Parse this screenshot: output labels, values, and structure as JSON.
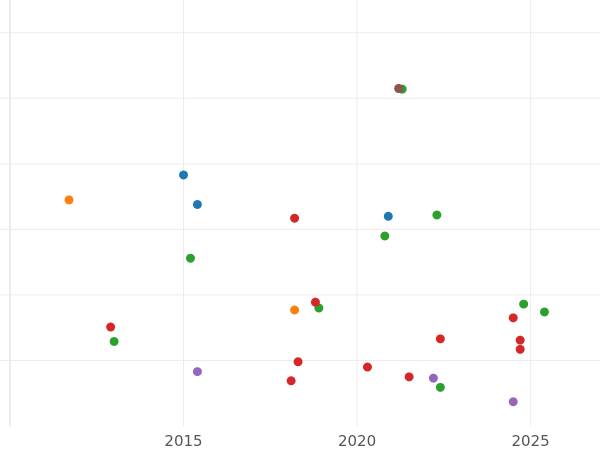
{
  "chart_data": {
    "type": "scatter",
    "title": "",
    "xlabel": "",
    "ylabel": "",
    "xlim": [
      2010,
      2027
    ],
    "ylim": [
      0,
      6.5
    ],
    "x_ticks": [
      2015,
      2020,
      2025
    ],
    "x_tick_labels": [
      "2015",
      "2020",
      "2025"
    ],
    "y_gridlines": [
      1,
      2,
      3,
      4,
      5,
      6
    ],
    "grid": true,
    "legend": "none",
    "series": [
      {
        "color": "#1f77b4",
        "points": [
          {
            "x": 2015.0,
            "y": 3.83
          },
          {
            "x": 2015.4,
            "y": 3.38
          },
          {
            "x": 2020.9,
            "y": 3.2
          }
        ]
      },
      {
        "color": "#ff7f0e",
        "points": [
          {
            "x": 2011.7,
            "y": 3.45
          },
          {
            "x": 2018.2,
            "y": 1.77
          }
        ]
      },
      {
        "color": "#2ca02c",
        "points": [
          {
            "x": 2021.3,
            "y": 5.14
          },
          {
            "x": 2022.3,
            "y": 3.22
          },
          {
            "x": 2020.8,
            "y": 2.9
          },
          {
            "x": 2015.2,
            "y": 2.56
          },
          {
            "x": 2018.9,
            "y": 1.8
          },
          {
            "x": 2024.8,
            "y": 1.86
          },
          {
            "x": 2025.4,
            "y": 1.74
          },
          {
            "x": 2013.0,
            "y": 1.29
          },
          {
            "x": 2022.4,
            "y": 0.59
          }
        ]
      },
      {
        "color": "#d62728",
        "points": [
          {
            "x": 2021.2,
            "y": 5.15
          },
          {
            "x": 2018.2,
            "y": 3.17
          },
          {
            "x": 2018.8,
            "y": 1.89
          },
          {
            "x": 2012.9,
            "y": 1.51
          },
          {
            "x": 2024.5,
            "y": 1.65
          },
          {
            "x": 2024.7,
            "y": 1.31
          },
          {
            "x": 2024.7,
            "y": 1.17
          },
          {
            "x": 2022.4,
            "y": 1.33
          },
          {
            "x": 2018.3,
            "y": 0.98
          },
          {
            "x": 2020.3,
            "y": 0.9
          },
          {
            "x": 2021.5,
            "y": 0.75
          },
          {
            "x": 2018.1,
            "y": 0.69
          }
        ]
      },
      {
        "color": "#8c564b",
        "points": [
          {
            "x": 2021.2,
            "y": 5.15
          }
        ]
      },
      {
        "color": "#9467bd",
        "points": [
          {
            "x": 2015.4,
            "y": 0.83
          },
          {
            "x": 2022.2,
            "y": 0.73
          },
          {
            "x": 2024.5,
            "y": 0.37
          }
        ]
      }
    ]
  }
}
